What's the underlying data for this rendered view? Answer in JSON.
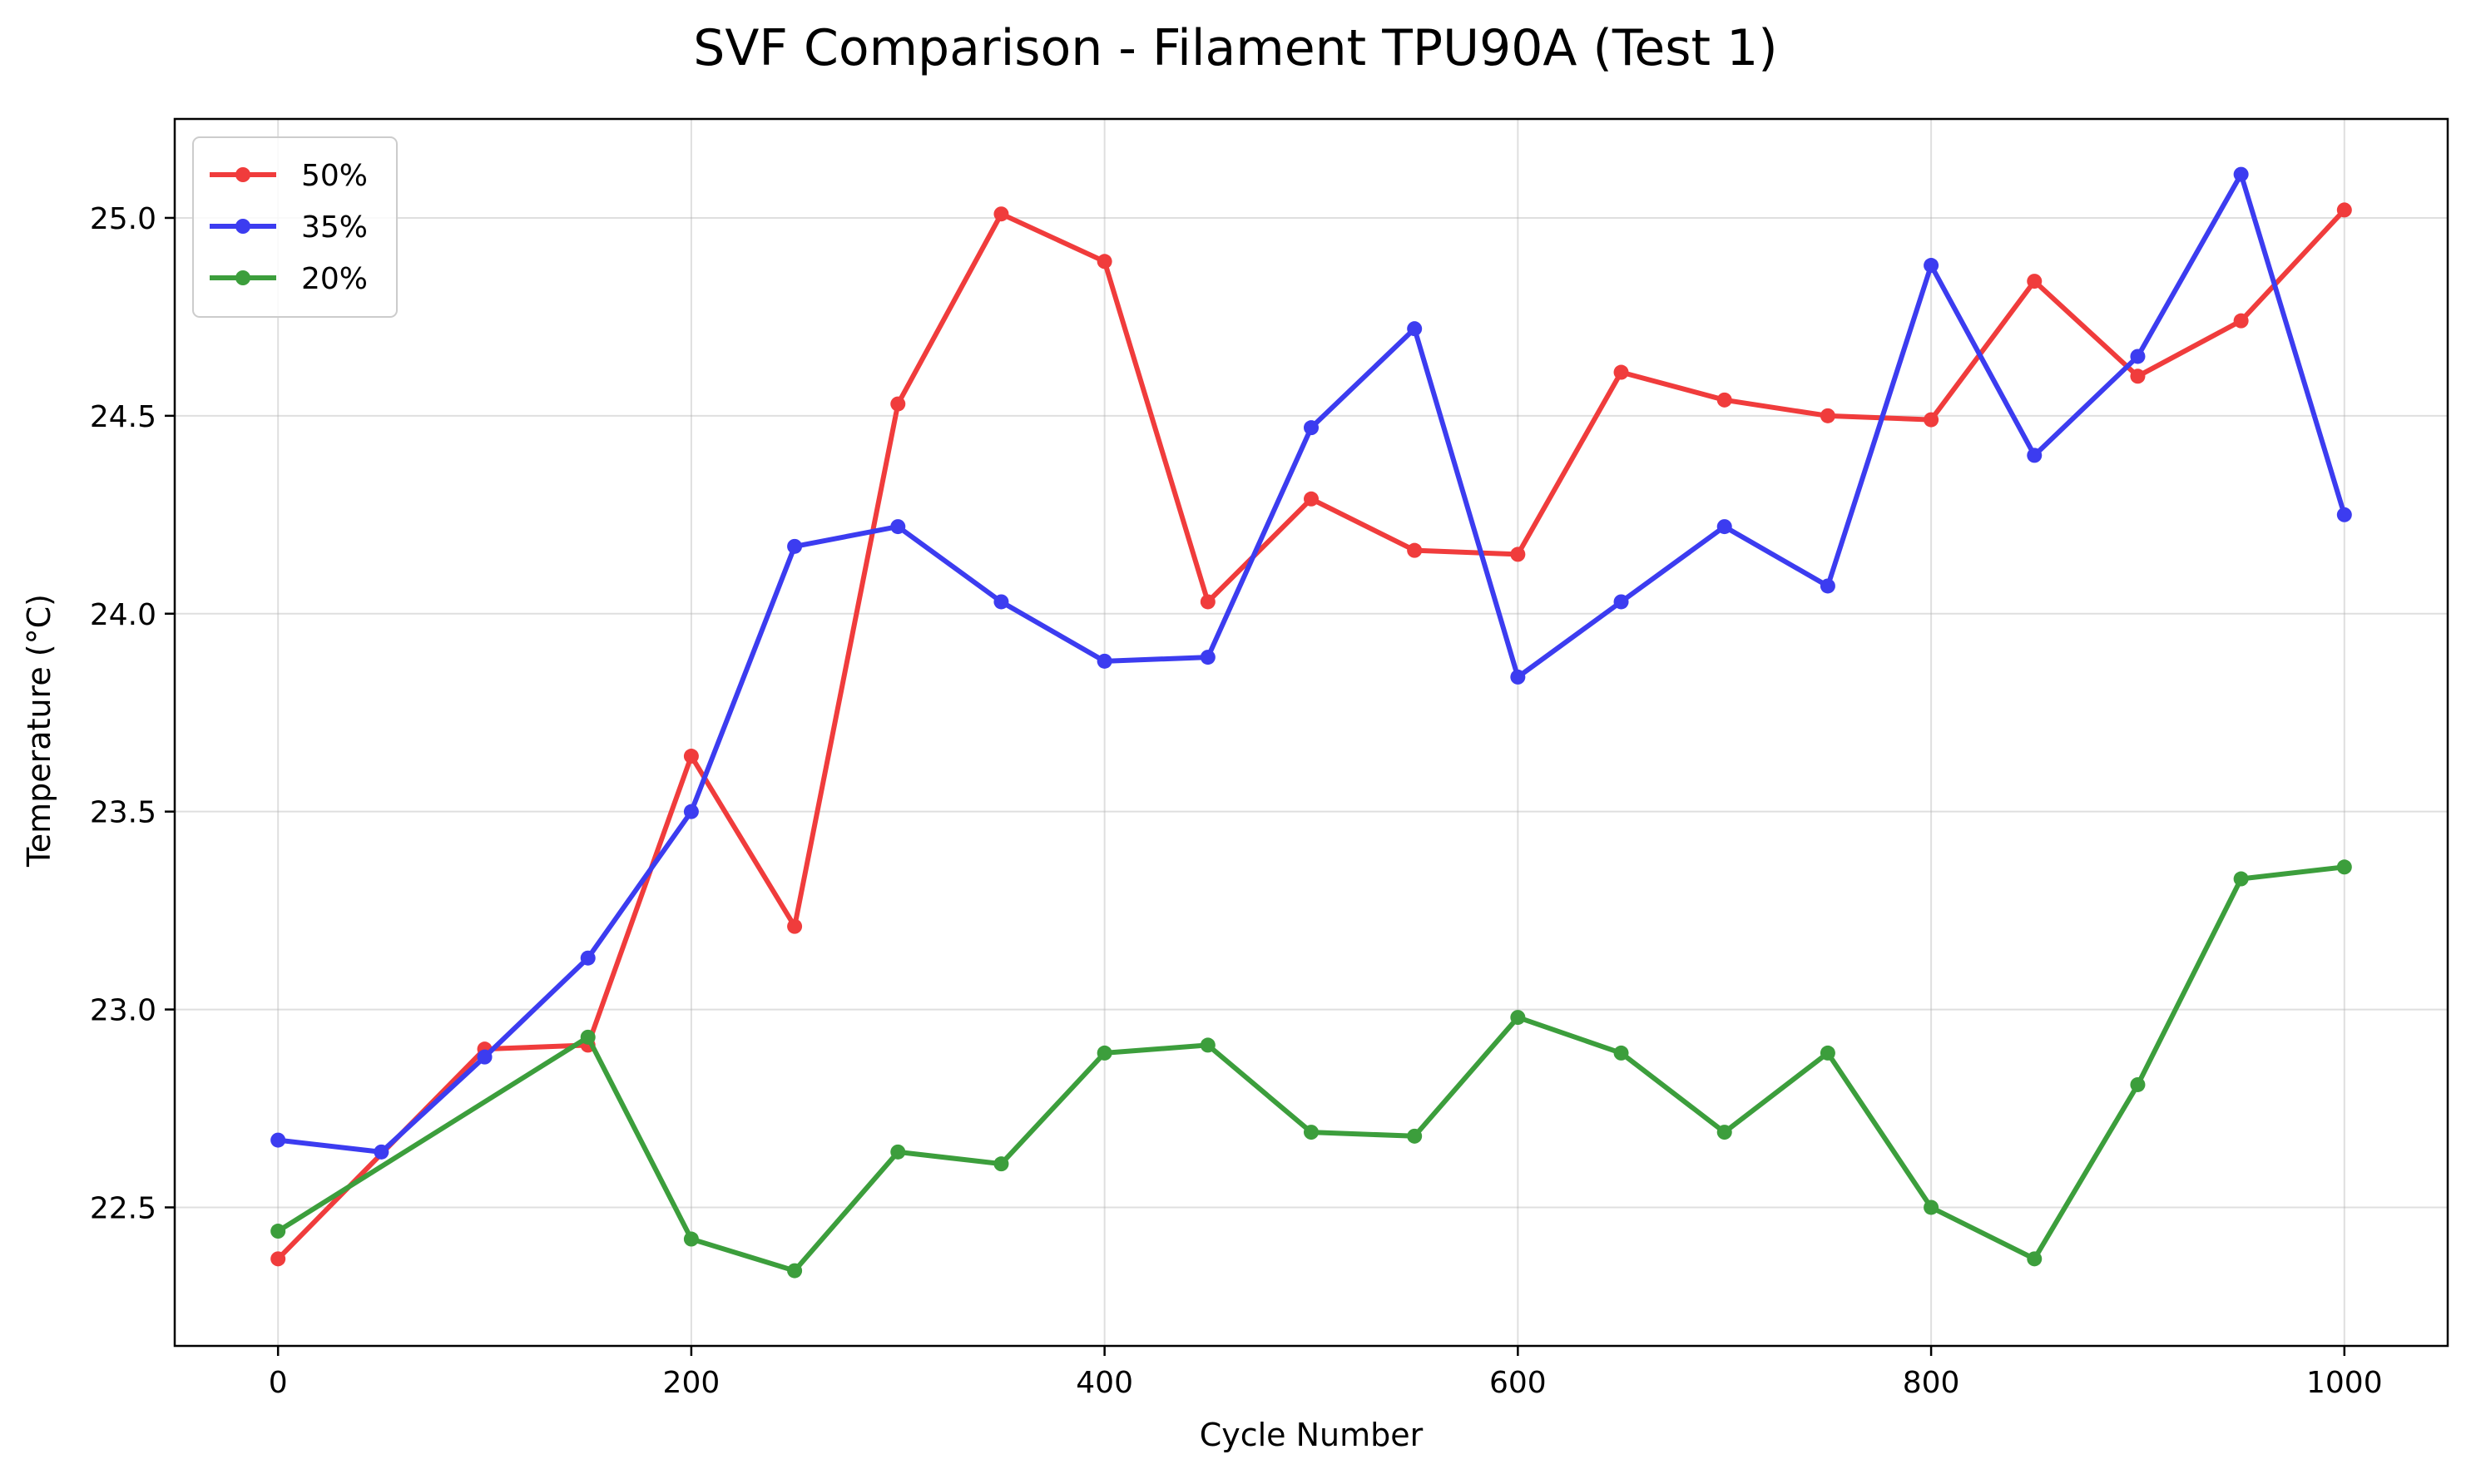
{
  "chart_data": {
    "type": "line",
    "title": "SVF Comparison - Filament TPU90A (Test 1)",
    "xlabel": "Cycle Number",
    "ylabel": "Temperature (°C)",
    "xlim": [
      -50,
      1050
    ],
    "ylim": [
      22.15,
      25.25
    ],
    "xticks": [
      0,
      200,
      400,
      600,
      800,
      1000
    ],
    "yticks": [
      22.5,
      23.0,
      23.5,
      24.0,
      24.5,
      25.0
    ],
    "xtick_labels": [
      "0",
      "200",
      "400",
      "600",
      "800",
      "1000"
    ],
    "ytick_labels": [
      "22.5",
      "23.0",
      "23.5",
      "24.0",
      "24.5",
      "25.0"
    ],
    "grid": true,
    "legend_position": "top-left",
    "series": [
      {
        "name": "50%",
        "color": "#f03c3c",
        "x": [
          0,
          100,
          150,
          200,
          250,
          300,
          350,
          400,
          450,
          500,
          550,
          600,
          650,
          700,
          750,
          800,
          850,
          900,
          950,
          1000
        ],
        "y": [
          22.37,
          22.9,
          22.91,
          23.64,
          23.21,
          24.53,
          25.01,
          24.89,
          24.03,
          24.29,
          24.16,
          24.15,
          24.61,
          24.54,
          24.5,
          24.49,
          24.84,
          24.6,
          24.74,
          25.02
        ]
      },
      {
        "name": "35%",
        "color": "#3c3cf0",
        "x": [
          0,
          50,
          100,
          150,
          200,
          250,
          300,
          350,
          400,
          450,
          500,
          550,
          600,
          650,
          700,
          750,
          800,
          850,
          900,
          950,
          1000
        ],
        "y": [
          22.67,
          22.64,
          22.88,
          23.13,
          23.5,
          24.17,
          24.22,
          24.03,
          23.88,
          23.89,
          24.47,
          24.72,
          23.84,
          24.03,
          24.22,
          24.07,
          24.88,
          24.4,
          24.65,
          25.11,
          24.25
        ]
      },
      {
        "name": "20%",
        "color": "#3c9e3c",
        "x": [
          0,
          150,
          200,
          250,
          300,
          350,
          400,
          450,
          500,
          550,
          600,
          650,
          700,
          750,
          800,
          850,
          900,
          950,
          1000
        ],
        "y": [
          22.44,
          22.93,
          22.42,
          22.34,
          22.64,
          22.61,
          22.89,
          22.91,
          22.69,
          22.68,
          22.98,
          22.89,
          22.69,
          22.89,
          22.5,
          22.37,
          22.81,
          23.33,
          23.36
        ]
      }
    ]
  }
}
